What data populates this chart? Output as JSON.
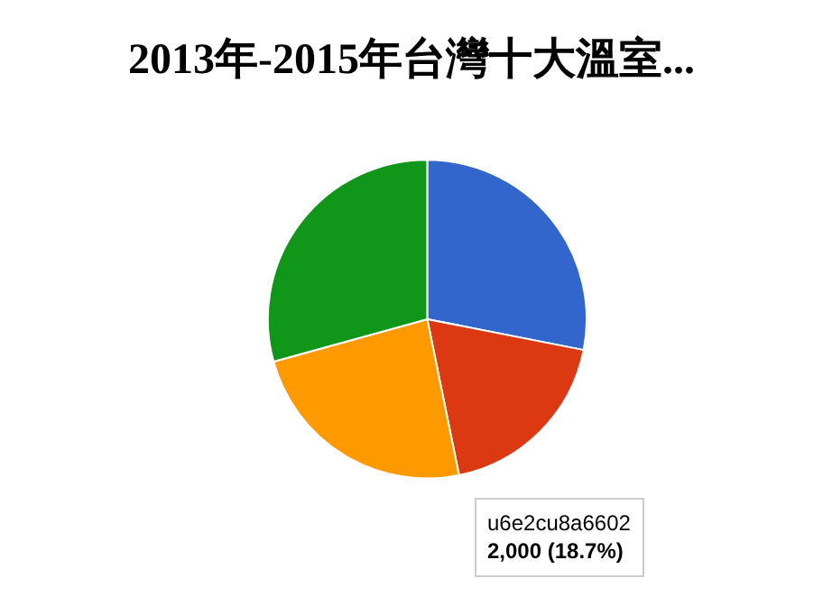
{
  "chart_data": {
    "type": "pie",
    "title": "2013年-2015年台灣十大溫室...",
    "categories": [
      null,
      null,
      null,
      null
    ],
    "values": [
      28.1,
      18.7,
      23.9,
      29.3
    ],
    "colors": [
      "#3366cc",
      "#dc3912",
      "#ff9900",
      "#109618"
    ],
    "annotations": [
      "u6e2cu8a6602",
      "2,000 (18.7%)"
    ],
    "legend": false
  }
}
